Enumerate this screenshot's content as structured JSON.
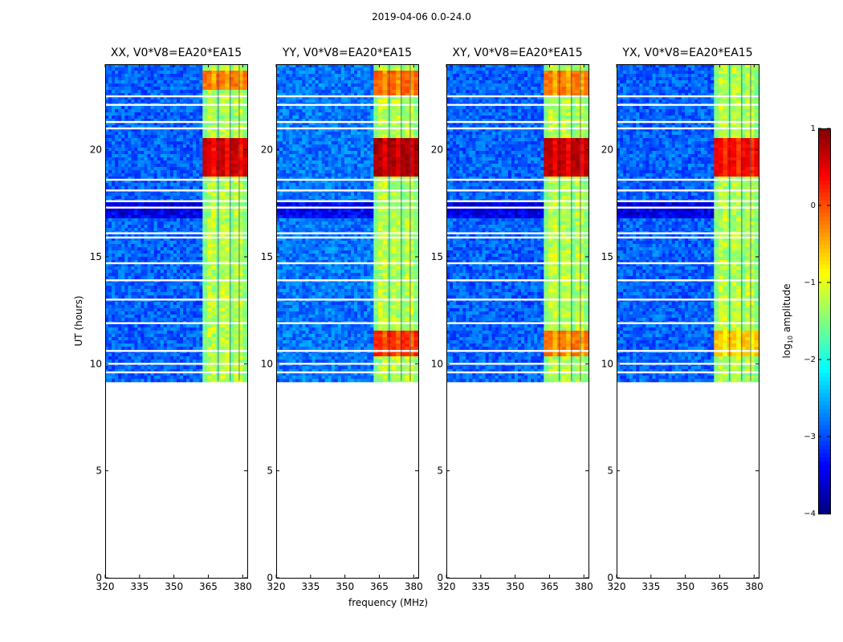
{
  "figure": {
    "suptitle": "2019-04-06 0.0-24.0",
    "ylabel": "UT (hours)",
    "xlabel": "frequency (MHz)",
    "colorbar_label_prefix": "log",
    "colorbar_label_sub": "10",
    "colorbar_label_suffix": " amplitude"
  },
  "chart_data": {
    "type": "heatmap",
    "title": "2019-04-06 0.0-24.0",
    "xlabel": "frequency (MHz)",
    "ylabel": "UT (hours)",
    "xlim": [
      320,
      382
    ],
    "ylim": [
      0,
      24
    ],
    "xticks": [
      320,
      335,
      350,
      365,
      380
    ],
    "yticks": [
      0,
      5,
      10,
      15,
      20
    ],
    "data_time_range_hours": [
      9.2,
      24
    ],
    "colorbar": {
      "label": "log10 amplitude",
      "range": [
        -4,
        1
      ],
      "ticks": [
        "1",
        "0",
        "−1",
        "−2",
        "−3",
        "−4"
      ],
      "colormap": "jet"
    },
    "panels": [
      {
        "title": "XX, V0*V8=EA20*EA15",
        "band_start_mhz": 362.5,
        "band_end_mhz": 382,
        "background_log_amp": -2.9,
        "bright_segments": [
          {
            "t0": 18.8,
            "t1": 20.6,
            "level": 0.6
          },
          {
            "t0": 22.8,
            "t1": 23.7,
            "level": -0.2
          }
        ]
      },
      {
        "title": "YY, V0*V8=EA20*EA15",
        "band_start_mhz": 362.5,
        "band_end_mhz": 382,
        "background_log_amp": -2.8,
        "bright_segments": [
          {
            "t0": 18.8,
            "t1": 20.6,
            "level": 0.8
          },
          {
            "t0": 10.3,
            "t1": 11.6,
            "level": 0.2
          },
          {
            "t0": 22.5,
            "t1": 23.7,
            "level": -0.1
          }
        ]
      },
      {
        "title": "XY, V0*V8=EA20*EA15",
        "band_start_mhz": 362.5,
        "band_end_mhz": 382,
        "background_log_amp": -2.9,
        "bright_segments": [
          {
            "t0": 18.8,
            "t1": 20.6,
            "level": 0.7
          },
          {
            "t0": 10.3,
            "t1": 11.6,
            "level": -0.2
          },
          {
            "t0": 22.5,
            "t1": 23.7,
            "level": -0.2
          }
        ]
      },
      {
        "title": "YX, V0*V8=EA20*EA15",
        "band_start_mhz": 362.5,
        "band_end_mhz": 382,
        "background_log_amp": -2.9,
        "bright_segments": [
          {
            "t0": 18.8,
            "t1": 20.6,
            "level": 0.4
          },
          {
            "t0": 10.3,
            "t1": 11.6,
            "level": -0.6
          }
        ]
      }
    ]
  }
}
